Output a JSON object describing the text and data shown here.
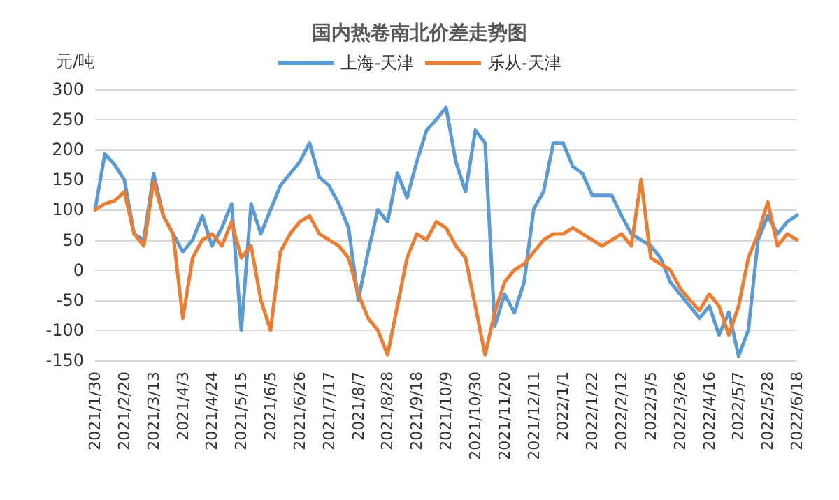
{
  "chart_data": {
    "type": "line",
    "title": "国内热卷南北价差走势图",
    "ylabel": "元/吨",
    "categories": [
      "2021/1/30",
      null,
      null,
      "2021/2/20",
      null,
      null,
      "2021/3/13",
      null,
      null,
      "2021/4/3",
      null,
      null,
      "2021/4/24",
      null,
      null,
      "2021/5/15",
      null,
      null,
      "2021/6/5",
      null,
      null,
      "2021/6/26",
      null,
      null,
      "2021/7/17",
      null,
      null,
      "2021/8/7",
      null,
      null,
      "2021/8/28",
      null,
      null,
      "2021/9/18",
      null,
      null,
      "2021/10/9",
      null,
      null,
      "2021/10/30",
      null,
      null,
      "2021/11/20",
      null,
      null,
      "2021/12/11",
      null,
      null,
      "2022/1/1",
      null,
      null,
      "2022/1/22",
      null,
      null,
      "2022/2/12",
      null,
      null,
      "2022/3/5",
      null,
      null,
      "2022/3/26",
      null,
      null,
      "2022/4/16",
      null,
      null,
      "2022/5/7",
      null,
      null,
      "2022/5/28",
      null,
      null,
      "2022/6/18"
    ],
    "series": [
      {
        "name": "上海-天津",
        "color": "#5b9bd5",
        "values": [
          100,
          193,
          175,
          150,
          60,
          50,
          160,
          90,
          60,
          30,
          50,
          90,
          40,
          70,
          110,
          -100,
          110,
          60,
          100,
          140,
          160,
          180,
          211,
          154,
          140,
          110,
          70,
          -50,
          30,
          100,
          80,
          161,
          120,
          180,
          232,
          250,
          270,
          180,
          130,
          232,
          211,
          -93,
          -40,
          -71,
          -20,
          102,
          130,
          211,
          211,
          172,
          160,
          124,
          124,
          124,
          90,
          60,
          50,
          40,
          20,
          -20,
          -40,
          -60,
          -80,
          -60,
          -108,
          -70,
          -143,
          -100,
          50,
          90,
          60,
          80,
          91
        ]
      },
      {
        "name": "乐从-天津",
        "color": "#ed7d31",
        "values": [
          100,
          110,
          115,
          130,
          60,
          40,
          147,
          90,
          60,
          -80,
          20,
          50,
          60,
          40,
          80,
          20,
          40,
          -50,
          -100,
          30,
          60,
          80,
          90,
          60,
          50,
          40,
          20,
          -40,
          -80,
          -100,
          -141,
          -60,
          20,
          60,
          50,
          80,
          70,
          40,
          20,
          -60,
          -141,
          -70,
          -20,
          0,
          10,
          30,
          50,
          60,
          60,
          70,
          60,
          50,
          40,
          50,
          60,
          40,
          150,
          20,
          10,
          0,
          -30,
          -50,
          -67,
          -40,
          -60,
          -108,
          -60,
          20,
          60,
          113,
          40,
          60,
          50
        ]
      }
    ],
    "ylim": [
      -150,
      300
    ],
    "yticks": [
      -150,
      -100,
      -50,
      0,
      50,
      100,
      150,
      200,
      250,
      300
    ],
    "grid": "y",
    "legend": "top",
    "marker": "none",
    "line_style": "solid"
  }
}
